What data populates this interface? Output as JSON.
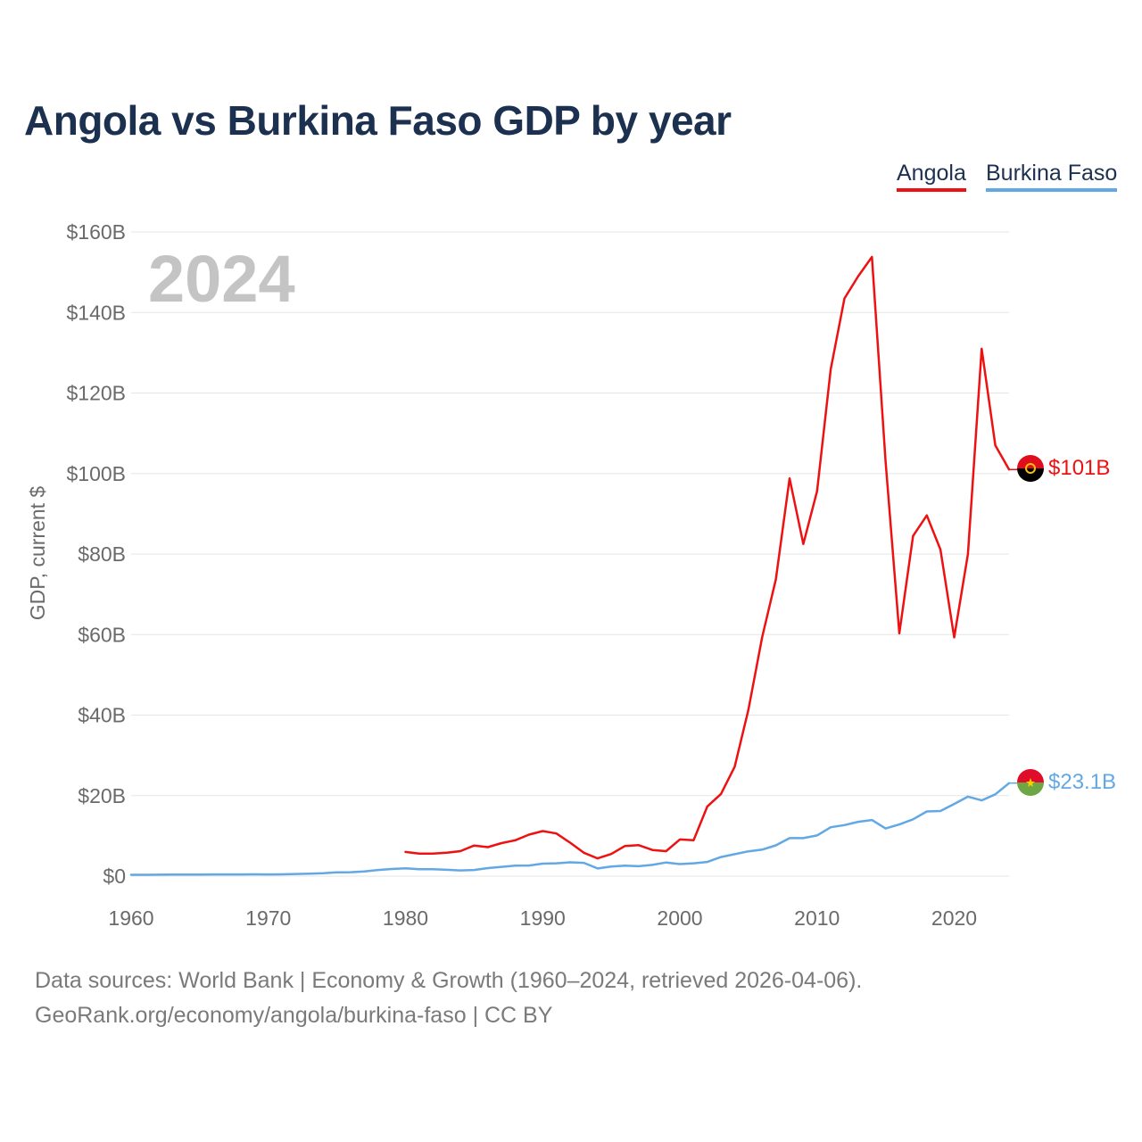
{
  "title": "Angola vs Burkina Faso GDP by year",
  "year_watermark": "2024",
  "colors": {
    "Angola": "#ee1111",
    "Burkina Faso": "#62a8e5"
  },
  "chart_data": {
    "type": "line",
    "title": "Angola vs Burkina Faso GDP by year",
    "xlabel": "",
    "ylabel": "GDP, current $",
    "xlim": [
      1960,
      2024
    ],
    "ylim": [
      0,
      160
    ],
    "y_unit": "billions USD",
    "xticks": [
      1960,
      1970,
      1980,
      1990,
      2000,
      2010,
      2020
    ],
    "xtick_labels": [
      "1960",
      "1970",
      "1980",
      "1990",
      "2000",
      "2010",
      "2020"
    ],
    "yticks": [
      0,
      20,
      40,
      60,
      80,
      100,
      120,
      140,
      160
    ],
    "ytick_labels": [
      "$0",
      "$20B",
      "$40B",
      "$60B",
      "$80B",
      "$100B",
      "$120B",
      "$140B",
      "$160B"
    ],
    "legend_position": "top-right",
    "grid": true,
    "series": [
      {
        "name": "Angola",
        "end_label": "$101B",
        "x": [
          1980,
          1981,
          1982,
          1983,
          1984,
          1985,
          1986,
          1987,
          1988,
          1989,
          1990,
          1991,
          1992,
          1993,
          1994,
          1995,
          1996,
          1997,
          1998,
          1999,
          2000,
          2001,
          2002,
          2003,
          2004,
          2005,
          2006,
          2007,
          2008,
          2009,
          2010,
          2011,
          2012,
          2013,
          2014,
          2015,
          2016,
          2017,
          2018,
          2019,
          2020,
          2021,
          2022,
          2023,
          2024
        ],
        "values": [
          6.0,
          5.6,
          5.6,
          5.8,
          6.2,
          7.6,
          7.2,
          8.2,
          8.9,
          10.3,
          11.2,
          10.6,
          8.3,
          5.8,
          4.4,
          5.5,
          7.5,
          7.7,
          6.5,
          6.2,
          9.1,
          8.9,
          17.3,
          20.4,
          27.2,
          41.4,
          59.4,
          73.7,
          98.8,
          82.5,
          95.6,
          125.9,
          143.5,
          149.0,
          153.8,
          103.0,
          60.3,
          84.5,
          89.6,
          81.1,
          59.3,
          80.0,
          131.0,
          107.0,
          101.0
        ]
      },
      {
        "name": "Burkina Faso",
        "end_label": "$23.1B",
        "x": [
          1960,
          1961,
          1962,
          1963,
          1964,
          1965,
          1966,
          1967,
          1968,
          1969,
          1970,
          1971,
          1972,
          1973,
          1974,
          1975,
          1976,
          1977,
          1978,
          1979,
          1980,
          1981,
          1982,
          1983,
          1984,
          1985,
          1986,
          1987,
          1988,
          1989,
          1990,
          1991,
          1992,
          1993,
          1994,
          1995,
          1996,
          1997,
          1998,
          1999,
          2000,
          2001,
          2002,
          2003,
          2004,
          2005,
          2006,
          2007,
          2008,
          2009,
          2010,
          2011,
          2012,
          2013,
          2014,
          2015,
          2016,
          2017,
          2018,
          2019,
          2020,
          2021,
          2022,
          2023,
          2024
        ],
        "values": [
          0.33,
          0.34,
          0.35,
          0.37,
          0.38,
          0.4,
          0.41,
          0.42,
          0.43,
          0.45,
          0.41,
          0.45,
          0.54,
          0.62,
          0.74,
          0.93,
          0.98,
          1.16,
          1.54,
          1.78,
          1.93,
          1.72,
          1.71,
          1.57,
          1.41,
          1.53,
          1.99,
          2.31,
          2.62,
          2.63,
          3.1,
          3.2,
          3.44,
          3.31,
          1.9,
          2.38,
          2.61,
          2.45,
          2.8,
          3.38,
          2.99,
          3.2,
          3.53,
          4.74,
          5.45,
          6.15,
          6.59,
          7.64,
          9.45,
          9.45,
          10.11,
          12.15,
          12.68,
          13.5,
          13.94,
          11.83,
          12.83,
          14.11,
          16.06,
          16.18,
          17.93,
          19.74,
          18.82,
          20.32,
          23.1
        ]
      }
    ]
  },
  "legend": {
    "angola": {
      "label": "Angola"
    },
    "burkina": {
      "label": "Burkina Faso"
    }
  },
  "footer": {
    "line1": "Data sources: World Bank | Economy & Growth (1960–2024, retrieved 2026-04-06).",
    "line2": "GeoRank.org/economy/angola/burkina-faso | CC BY"
  }
}
